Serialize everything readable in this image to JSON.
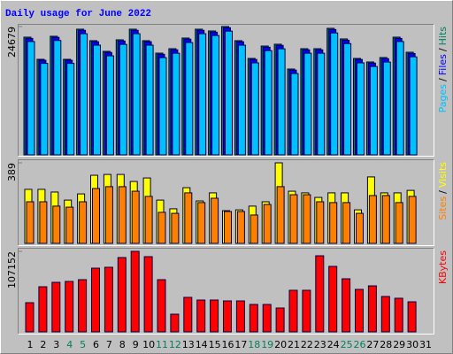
{
  "chart_data": [
    {
      "type": "bar",
      "title": "Daily usage for June 2022",
      "ylim": [
        0,
        24679
      ],
      "yticks": [
        24679
      ],
      "legend_separator": "/",
      "series": [
        {
          "name": "Hits",
          "color": "#00805c",
          "values": [
            22640,
            18380,
            22810,
            18380,
            24170,
            21960,
            19910,
            22130,
            24170,
            21960,
            19570,
            20420,
            22470,
            24170,
            23830,
            24679,
            21960,
            18550,
            20930,
            21280,
            16510,
            20420,
            20420,
            24340,
            22300,
            18550,
            17870,
            18720,
            22640,
            19740,
            null
          ]
        },
        {
          "name": "Files",
          "color": "#0000ff",
          "values": [
            22400,
            18200,
            22600,
            18200,
            23950,
            21750,
            19700,
            21900,
            23950,
            21750,
            19350,
            20200,
            22250,
            23950,
            23600,
            24450,
            21750,
            18350,
            20700,
            21050,
            16300,
            20200,
            20200,
            24100,
            22050,
            18350,
            17650,
            18500,
            22400,
            19500,
            null
          ]
        },
        {
          "name": "Pages",
          "color": "#00c0ff",
          "values": [
            21800,
            17600,
            22000,
            17600,
            23300,
            21100,
            19050,
            21250,
            23300,
            21100,
            18700,
            19550,
            21600,
            23300,
            22950,
            23800,
            21100,
            17700,
            20050,
            20400,
            15650,
            19550,
            19550,
            23450,
            21400,
            17700,
            17000,
            17850,
            21800,
            18850,
            null
          ]
        }
      ]
    },
    {
      "type": "bar",
      "ylim": [
        0,
        389
      ],
      "yticks": [
        389
      ],
      "legend_separator": "/",
      "series": [
        {
          "name": "Visits",
          "color": "#ffff00",
          "values": [
            261,
            261,
            248,
            209,
            239,
            329,
            333,
            333,
            299,
            316,
            209,
            167,
            269,
            205,
            244,
            158,
            162,
            180,
            201,
            389,
            252,
            244,
            222,
            244,
            244,
            162,
            321,
            244,
            244,
            256,
            null
          ]
        },
        {
          "name": "Sites",
          "color": "#ff8000",
          "values": [
            201,
            201,
            180,
            175,
            201,
            265,
            274,
            274,
            252,
            227,
            150,
            145,
            244,
            197,
            218,
            154,
            154,
            137,
            188,
            274,
            235,
            235,
            201,
            197,
            197,
            145,
            231,
            231,
            197,
            227,
            null
          ]
        }
      ]
    },
    {
      "type": "bar",
      "ylim": [
        0,
        107152
      ],
      "yticks": [
        107152
      ],
      "series": [
        {
          "name": "KBytes",
          "color": "#ff0000",
          "values": [
            38857,
            60052,
            65940,
            67117,
            69472,
            84780,
            85956,
            98909,
            107152,
            100087,
            69472,
            23550,
            45922,
            42390,
            42390,
            41212,
            41212,
            36502,
            36502,
            31793,
            55342,
            55342,
            101264,
            87134,
            70650,
            56520,
            61230,
            47100,
            44745,
            40035,
            null
          ]
        }
      ],
      "categories": [
        "1",
        "2",
        "3",
        "4",
        "5",
        "6",
        "7",
        "8",
        "9",
        "10",
        "11",
        "12",
        "13",
        "14",
        "15",
        "16",
        "17",
        "18",
        "19",
        "20",
        "21",
        "22",
        "23",
        "24",
        "25",
        "26",
        "27",
        "28",
        "29",
        "30",
        "31"
      ],
      "category_colors": [
        "#000000",
        "#000000",
        "#000000",
        "#00805c",
        "#00805c",
        "#000000",
        "#000000",
        "#000000",
        "#000000",
        "#000000",
        "#00805c",
        "#00805c",
        "#000000",
        "#000000",
        "#000000",
        "#000000",
        "#000000",
        "#00805c",
        "#00805c",
        "#000000",
        "#000000",
        "#000000",
        "#000000",
        "#000000",
        "#00805c",
        "#00805c",
        "#000000",
        "#000000",
        "#000000",
        "#000000",
        "#000000"
      ]
    }
  ]
}
